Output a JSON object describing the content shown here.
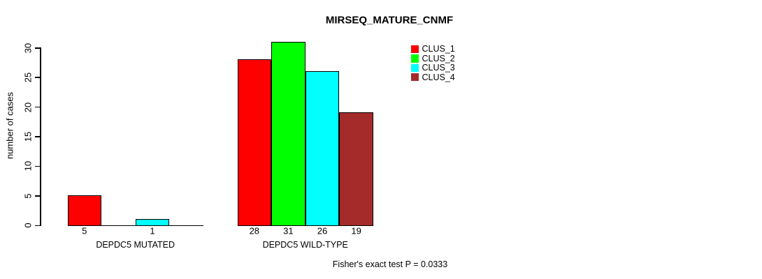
{
  "chart_data": {
    "type": "bar",
    "title": "MIRSEQ_MATURE_CNMF",
    "ylabel": "number of cases",
    "xlabel": "",
    "ylim": [
      0,
      30
    ],
    "yticks": [
      0,
      5,
      10,
      15,
      20,
      25,
      30
    ],
    "grid": false,
    "legend_position": "top-right",
    "categories": [
      "DEPDC5 MUTATED",
      "DEPDC5 WILD-TYPE"
    ],
    "series": [
      {
        "name": "CLUS_1",
        "color": "#ff0000",
        "values": [
          5,
          28
        ]
      },
      {
        "name": "CLUS_2",
        "color": "#00ff00",
        "values": [
          0,
          31
        ]
      },
      {
        "name": "CLUS_3",
        "color": "#00ffff",
        "values": [
          1,
          26
        ]
      },
      {
        "name": "CLUS_4",
        "color": "#a52a2a",
        "values": [
          0,
          19
        ]
      }
    ],
    "value_labels": {
      "DEPDC5 MUTATED": [
        "5",
        "",
        "1",
        ""
      ],
      "DEPDC5 WILD-TYPE": [
        "28",
        "31",
        "26",
        "19"
      ]
    },
    "annotation": "Fisher's exact test P = 0.0333"
  }
}
